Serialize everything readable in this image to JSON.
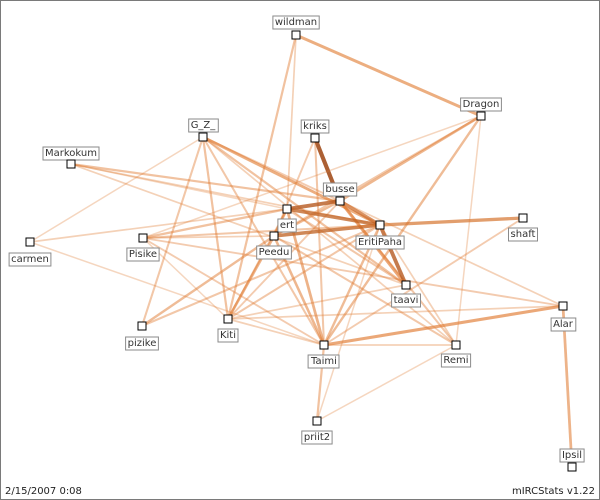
{
  "footer": {
    "date": "2/15/2007 0:08",
    "credit": "mIRCStats v1.22"
  },
  "colors": {
    "edge": "#e07a30",
    "edge_dark": "#8b3a10",
    "node_fill": "#ffffff",
    "node_stroke": "#000000"
  },
  "nodes": [
    {
      "id": "wildman",
      "label": "wildman"
    },
    {
      "id": "Dragon",
      "label": "Dragon"
    },
    {
      "id": "kriks",
      "label": "kriks"
    },
    {
      "id": "G_Z_",
      "label": "G_Z_"
    },
    {
      "id": "Markokum",
      "label": "Markokum"
    },
    {
      "id": "busse",
      "label": "busse"
    },
    {
      "id": "ert",
      "label": "ert"
    },
    {
      "id": "EritiPaha",
      "label": "EritiPaha"
    },
    {
      "id": "shaft",
      "label": "shaft"
    },
    {
      "id": "carmen",
      "label": "carmen"
    },
    {
      "id": "Pisike",
      "label": "Pisike"
    },
    {
      "id": "Peedu",
      "label": "Peedu"
    },
    {
      "id": "taavi",
      "label": "taavi"
    },
    {
      "id": "Alar",
      "label": "Alar"
    },
    {
      "id": "pizike",
      "label": "pizike"
    },
    {
      "id": "Kiti",
      "label": "Kiti"
    },
    {
      "id": "Taimi",
      "label": "Taimi"
    },
    {
      "id": "Remi",
      "label": "Remi"
    },
    {
      "id": "priit2",
      "label": "priit2"
    },
    {
      "id": "Ipsil",
      "label": "Ipsil"
    }
  ],
  "edges": [
    {
      "from": "wildman",
      "to": "Dragon",
      "weight": 0.55
    },
    {
      "from": "wildman",
      "to": "Kiti",
      "weight": 0.35
    },
    {
      "from": "wildman",
      "to": "ert",
      "weight": 0.2
    },
    {
      "from": "kriks",
      "to": "busse",
      "weight": 0.9
    },
    {
      "from": "kriks",
      "to": "Taimi",
      "weight": 0.3
    },
    {
      "from": "kriks",
      "to": "Peedu",
      "weight": 0.25
    },
    {
      "from": "Dragon",
      "to": "busse",
      "weight": 0.45
    },
    {
      "from": "Dragon",
      "to": "Peedu",
      "weight": 0.3
    },
    {
      "from": "Dragon",
      "to": "Taimi",
      "weight": 0.4
    },
    {
      "from": "Dragon",
      "to": "Remi",
      "weight": 0.15
    },
    {
      "from": "Dragon",
      "to": "Pisike",
      "weight": 0.15
    },
    {
      "from": "G_Z_",
      "to": "EritiPaha",
      "weight": 0.55
    },
    {
      "from": "G_Z_",
      "to": "busse",
      "weight": 0.25
    },
    {
      "from": "G_Z_",
      "to": "Kiti",
      "weight": 0.35
    },
    {
      "from": "G_Z_",
      "to": "Taimi",
      "weight": 0.3
    },
    {
      "from": "G_Z_",
      "to": "taavi",
      "weight": 0.35
    },
    {
      "from": "G_Z_",
      "to": "pizike",
      "weight": 0.3
    },
    {
      "from": "G_Z_",
      "to": "carmen",
      "weight": 0.15
    },
    {
      "from": "G_Z_",
      "to": "Remi",
      "weight": 0.2
    },
    {
      "from": "Markokum",
      "to": "busse",
      "weight": 0.35
    },
    {
      "from": "Markokum",
      "to": "taavi",
      "weight": 0.2
    },
    {
      "from": "Markokum",
      "to": "EritiPaha",
      "weight": 0.2
    },
    {
      "from": "busse",
      "to": "ert",
      "weight": 0.8
    },
    {
      "from": "busse",
      "to": "EritiPaha",
      "weight": 0.7
    },
    {
      "from": "busse",
      "to": "Peedu",
      "weight": 0.4
    },
    {
      "from": "busse",
      "to": "Remi",
      "weight": 0.3
    },
    {
      "from": "busse",
      "to": "Kiti",
      "weight": 0.25
    },
    {
      "from": "busse",
      "to": "taavi",
      "weight": 0.6
    },
    {
      "from": "ert",
      "to": "EritiPaha",
      "weight": 0.75
    },
    {
      "from": "ert",
      "to": "Peedu",
      "weight": 0.45
    },
    {
      "from": "ert",
      "to": "Taimi",
      "weight": 0.5
    },
    {
      "from": "ert",
      "to": "Kiti",
      "weight": 0.3
    },
    {
      "from": "ert",
      "to": "carmen",
      "weight": 0.2
    },
    {
      "from": "ert",
      "to": "Pisike",
      "weight": 0.35
    },
    {
      "from": "ert",
      "to": "taavi",
      "weight": 0.3
    },
    {
      "from": "ert",
      "to": "Markokum",
      "weight": 0.15
    },
    {
      "from": "EritiPaha",
      "to": "shaft",
      "weight": 0.65
    },
    {
      "from": "EritiPaha",
      "to": "taavi",
      "weight": 0.8
    },
    {
      "from": "EritiPaha",
      "to": "Taimi",
      "weight": 0.4
    },
    {
      "from": "EritiPaha",
      "to": "Peedu",
      "weight": 0.75
    },
    {
      "from": "EritiPaha",
      "to": "Kiti",
      "weight": 0.3
    },
    {
      "from": "EritiPaha",
      "to": "pizike",
      "weight": 0.3
    },
    {
      "from": "EritiPaha",
      "to": "Remi",
      "weight": 0.2
    },
    {
      "from": "EritiPaha",
      "to": "Pisike",
      "weight": 0.3
    },
    {
      "from": "Peedu",
      "to": "Kiti",
      "weight": 0.5
    },
    {
      "from": "Peedu",
      "to": "Taimi",
      "weight": 0.45
    },
    {
      "from": "Peedu",
      "to": "pizike",
      "weight": 0.4
    },
    {
      "from": "Peedu",
      "to": "Remi",
      "weight": 0.3
    },
    {
      "from": "Peedu",
      "to": "Pisike",
      "weight": 0.2
    },
    {
      "from": "Pisike",
      "to": "Alar",
      "weight": 0.25
    },
    {
      "from": "Pisike",
      "to": "Kiti",
      "weight": 0.15
    },
    {
      "from": "carmen",
      "to": "Taimi",
      "weight": 0.15
    },
    {
      "from": "taavi",
      "to": "Kiti",
      "weight": 0.2
    },
    {
      "from": "Alar",
      "to": "Taimi",
      "weight": 0.6
    },
    {
      "from": "Alar",
      "to": "Ipsil",
      "weight": 0.5
    },
    {
      "from": "Alar",
      "to": "Kiti",
      "weight": 0.2
    },
    {
      "from": "Alar",
      "to": "busse",
      "weight": 0.2
    },
    {
      "from": "shaft",
      "to": "Taimi",
      "weight": 0.25
    },
    {
      "from": "Taimi",
      "to": "priit2",
      "weight": 0.35
    },
    {
      "from": "Taimi",
      "to": "Remi",
      "weight": 0.2
    },
    {
      "from": "Taimi",
      "to": "Pisike",
      "weight": 0.25
    },
    {
      "from": "Taimi",
      "to": "Kiti",
      "weight": 0.2
    },
    {
      "from": "priit2",
      "to": "EritiPaha",
      "weight": 0.15
    },
    {
      "from": "priit2",
      "to": "Remi",
      "weight": 0.15
    }
  ]
}
